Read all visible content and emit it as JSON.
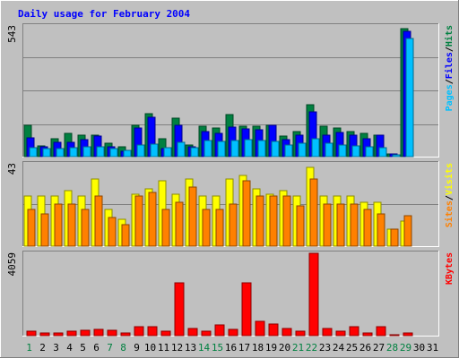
{
  "chart_data": {
    "type": "bar",
    "title": "Daily usage for February 2004",
    "categories": [
      "1",
      "2",
      "3",
      "4",
      "5",
      "6",
      "7",
      "8",
      "9",
      "10",
      "11",
      "12",
      "13",
      "14",
      "15",
      "16",
      "17",
      "18",
      "19",
      "20",
      "21",
      "22",
      "23",
      "24",
      "25",
      "26",
      "27",
      "28",
      "29",
      "30",
      "31"
    ],
    "weekend_days": [
      1,
      7,
      8,
      14,
      15,
      21,
      22,
      28,
      29
    ],
    "panels": [
      {
        "id": "hits",
        "max_label": "543",
        "ylim": [
          0,
          543
        ],
        "legend": [
          "Pages",
          "Files",
          "Hits"
        ],
        "series": [
          {
            "name": "Hits",
            "color": "#008040",
            "values": [
              130,
              45,
              75,
              95,
              88,
              90,
              55,
              40,
              132,
              180,
              75,
              160,
              48,
              125,
              120,
              175,
              128,
              125,
              130,
              85,
              105,
              215,
              125,
              120,
              105,
              95,
              90,
              13,
              530,
              0,
              0
            ]
          },
          {
            "name": "Files",
            "color": "#0000ff",
            "values": [
              78,
              42,
              58,
              58,
              72,
              85,
              40,
              22,
              118,
              165,
              35,
              132,
              40,
              105,
              95,
              123,
              115,
              110,
              132,
              70,
              90,
              185,
              88,
              100,
              88,
              75,
              90,
              13,
              520,
              0,
              0
            ]
          },
          {
            "name": "Pages",
            "color": "#00c0ff",
            "values": [
              38,
              32,
              35,
              38,
              40,
              40,
              35,
              25,
              50,
              52,
              38,
              60,
              38,
              68,
              65,
              68,
              72,
              68,
              65,
              50,
              55,
              73,
              55,
              48,
              44,
              40,
              38,
              6,
              490,
              0,
              0
            ]
          }
        ]
      },
      {
        "id": "visits",
        "max_label": "43",
        "ylim": [
          0,
          43
        ],
        "legend": [
          "Sites",
          "Visits"
        ],
        "series": [
          {
            "name": "Visits",
            "color": "#ffff00",
            "values": [
              26,
              26,
              26,
              29,
              26,
              35,
              19,
              14,
              27,
              30,
              34,
              27,
              35,
              26,
              26,
              35,
              37,
              30,
              27,
              29,
              26,
              41,
              26,
              26,
              26,
              23,
              23,
              9,
              13,
              0,
              0
            ]
          },
          {
            "name": "Sites",
            "color": "#ff8000",
            "values": [
              19,
              17,
              22,
              22,
              19,
              26,
              15,
              11,
              26,
              28,
              19,
              23,
              31,
              19,
              19,
              22,
              34,
              26,
              26,
              26,
              21,
              35,
              22,
              22,
              22,
              19,
              17,
              9,
              16,
              0,
              0
            ]
          }
        ]
      },
      {
        "id": "kbytes",
        "max_label": "4059",
        "ylim": [
          0,
          4059
        ],
        "legend": [
          "KBytes"
        ],
        "series": [
          {
            "name": "KBytes",
            "color": "#ff0000",
            "values": [
              230,
              140,
              130,
              200,
              260,
              310,
              260,
              120,
              420,
              420,
              230,
              2600,
              340,
              230,
              540,
              300,
              2610,
              690,
              590,
              340,
              230,
              4059,
              360,
              230,
              440,
              140,
              460,
              60,
              140,
              0,
              0
            ]
          }
        ]
      }
    ]
  }
}
